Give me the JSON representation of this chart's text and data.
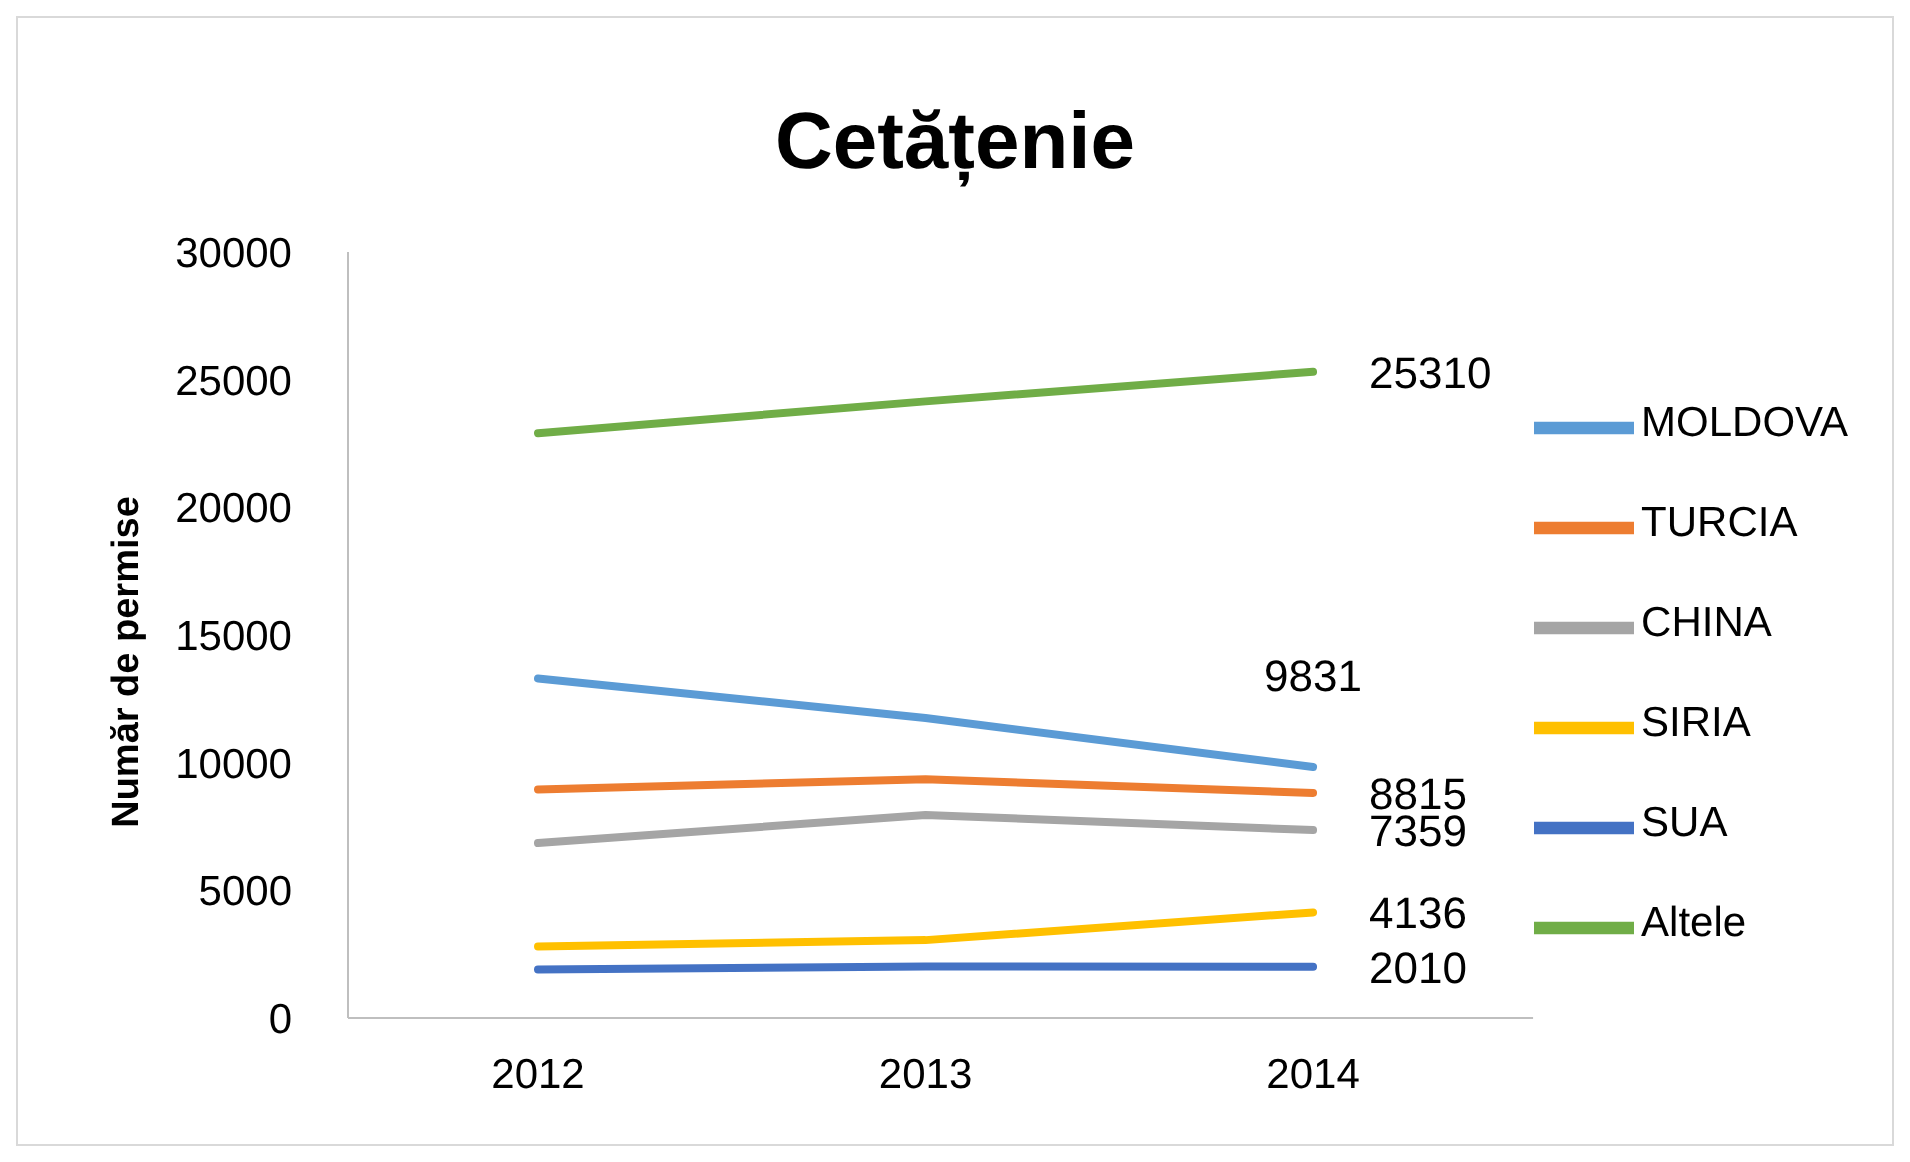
{
  "chart_data": {
    "type": "line",
    "title": "Cetățenie",
    "ylabel": "Număr de permise",
    "categories": [
      "2012",
      "2013",
      "2014"
    ],
    "series": [
      {
        "name": "MOLDOVA",
        "color": "#5b9bd5",
        "values": [
          13300,
          11750,
          9831
        ],
        "value_labels": [
          null,
          null,
          "9831"
        ]
      },
      {
        "name": "TURCIA",
        "color": "#ed7d31",
        "values": [
          8950,
          9350,
          8815
        ],
        "value_labels": [
          null,
          null,
          "8815"
        ]
      },
      {
        "name": "CHINA",
        "color": "#a5a5a5",
        "values": [
          6850,
          7950,
          7359
        ],
        "value_labels": [
          null,
          null,
          "7359"
        ]
      },
      {
        "name": "SIRIA",
        "color": "#ffc000",
        "values": [
          2800,
          3050,
          4136
        ],
        "value_labels": [
          null,
          null,
          "4136"
        ]
      },
      {
        "name": "SUA",
        "color": "#4472c4",
        "values": [
          1900,
          2020,
          2010
        ],
        "value_labels": [
          null,
          null,
          "2010"
        ]
      },
      {
        "name": "Altele",
        "color": "#70ad47",
        "values": [
          22900,
          24150,
          25310
        ],
        "value_labels": [
          null,
          null,
          "25310"
        ]
      }
    ],
    "ylim": [
      0,
      30000
    ],
    "yticks": [
      0,
      5000,
      10000,
      15000,
      20000,
      25000,
      30000
    ],
    "grid": false,
    "legend": "right",
    "marker": "none"
  }
}
